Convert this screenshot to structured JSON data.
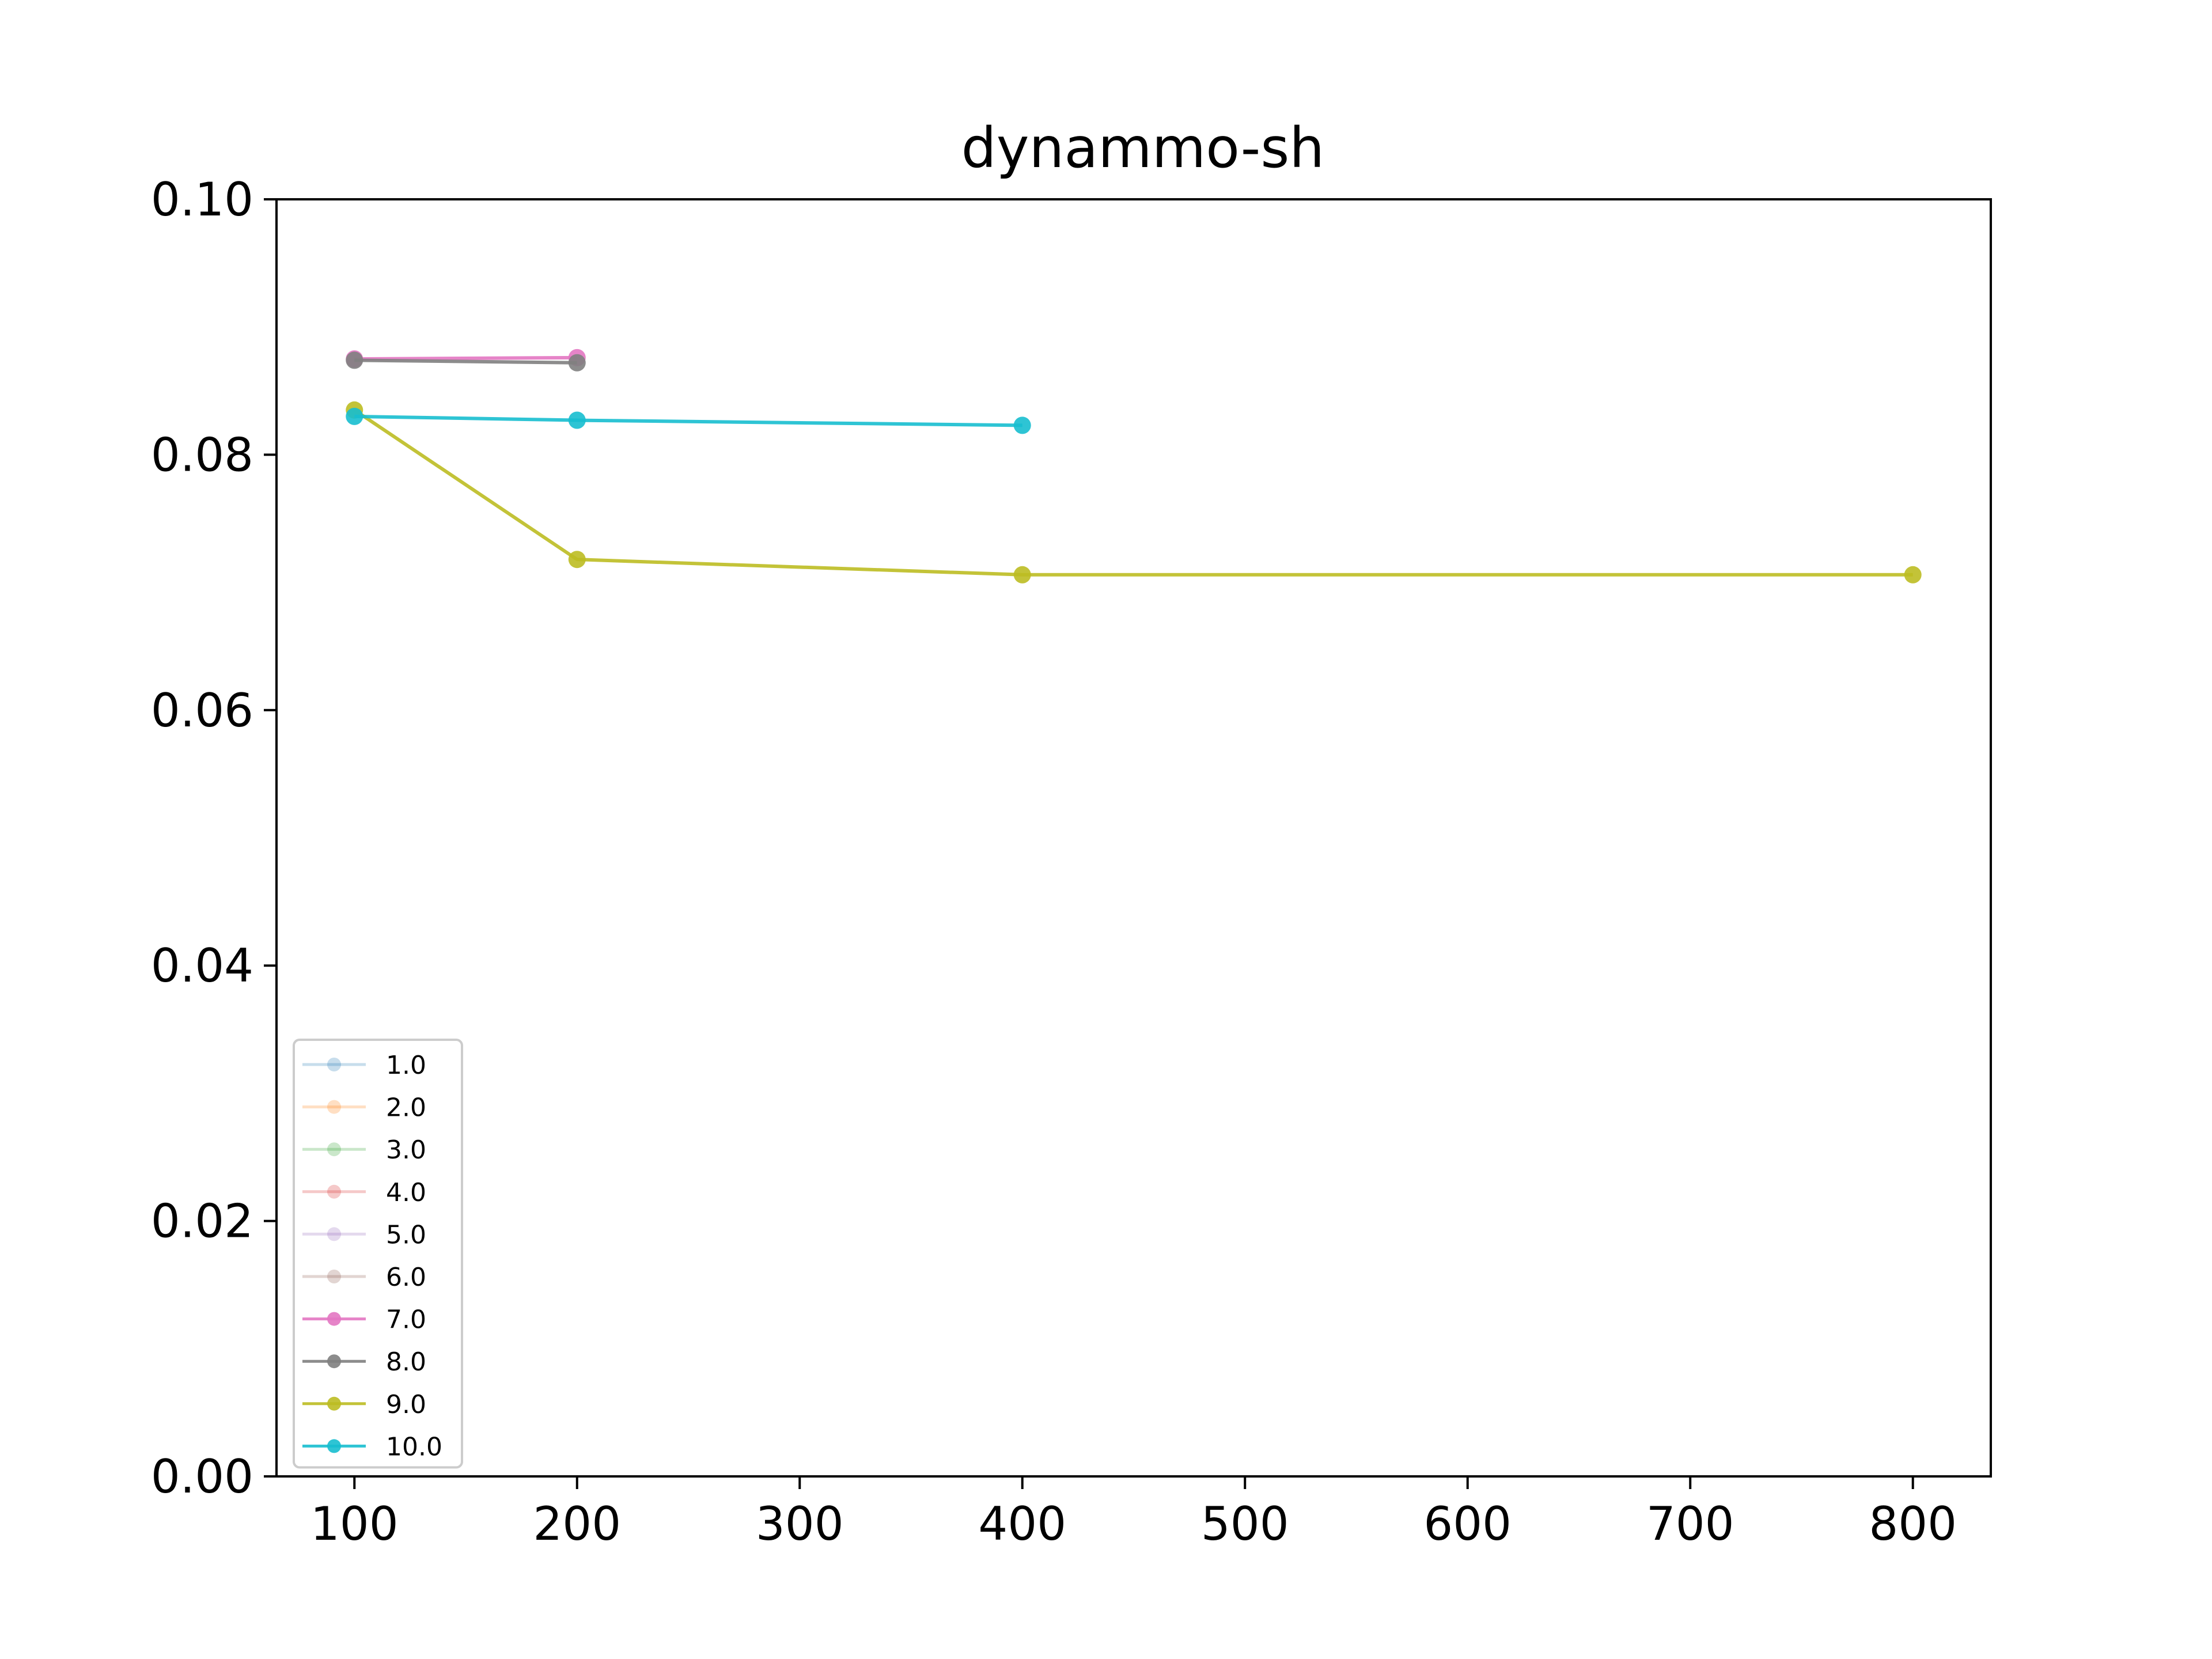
{
  "chart_data": {
    "type": "line",
    "title": "dynammo-sh",
    "xlabel": "",
    "ylabel": "",
    "xlim": [
      65,
      835
    ],
    "ylim": [
      0.0,
      0.1
    ],
    "xticks": [
      100,
      200,
      300,
      400,
      500,
      600,
      700,
      800
    ],
    "yticks": [
      0.0,
      0.02,
      0.04,
      0.06,
      0.08,
      0.1
    ],
    "xtick_labels": [
      "100",
      "200",
      "300",
      "400",
      "500",
      "600",
      "700",
      "800"
    ],
    "ytick_labels": [
      "0.00",
      "0.02",
      "0.04",
      "0.06",
      "0.08",
      "0.10"
    ],
    "grid": false,
    "legend_position": "lower-left",
    "series": [
      {
        "name": "1.0",
        "color": "#1f77b4",
        "faded": true,
        "x": [],
        "y": []
      },
      {
        "name": "2.0",
        "color": "#ff7f0e",
        "faded": true,
        "x": [],
        "y": []
      },
      {
        "name": "3.0",
        "color": "#2ca02c",
        "faded": true,
        "x": [],
        "y": []
      },
      {
        "name": "4.0",
        "color": "#d62728",
        "faded": true,
        "x": [],
        "y": []
      },
      {
        "name": "5.0",
        "color": "#9467bd",
        "faded": true,
        "x": [],
        "y": []
      },
      {
        "name": "6.0",
        "color": "#8c564b",
        "faded": true,
        "x": [],
        "y": []
      },
      {
        "name": "7.0",
        "color": "#e377c2",
        "faded": false,
        "x": [
          100,
          200
        ],
        "y": [
          0.0875,
          0.0876
        ]
      },
      {
        "name": "8.0",
        "color": "#7f7f7f",
        "faded": false,
        "x": [
          100,
          200
        ],
        "y": [
          0.0874,
          0.0872
        ]
      },
      {
        "name": "9.0",
        "color": "#bcbd22",
        "faded": false,
        "x": [
          100,
          200,
          400,
          800
        ],
        "y": [
          0.0835,
          0.0718,
          0.0706,
          0.0706
        ]
      },
      {
        "name": "10.0",
        "color": "#17becf",
        "faded": false,
        "x": [
          100,
          200,
          400
        ],
        "y": [
          0.083,
          0.0827,
          0.0823
        ]
      }
    ]
  }
}
